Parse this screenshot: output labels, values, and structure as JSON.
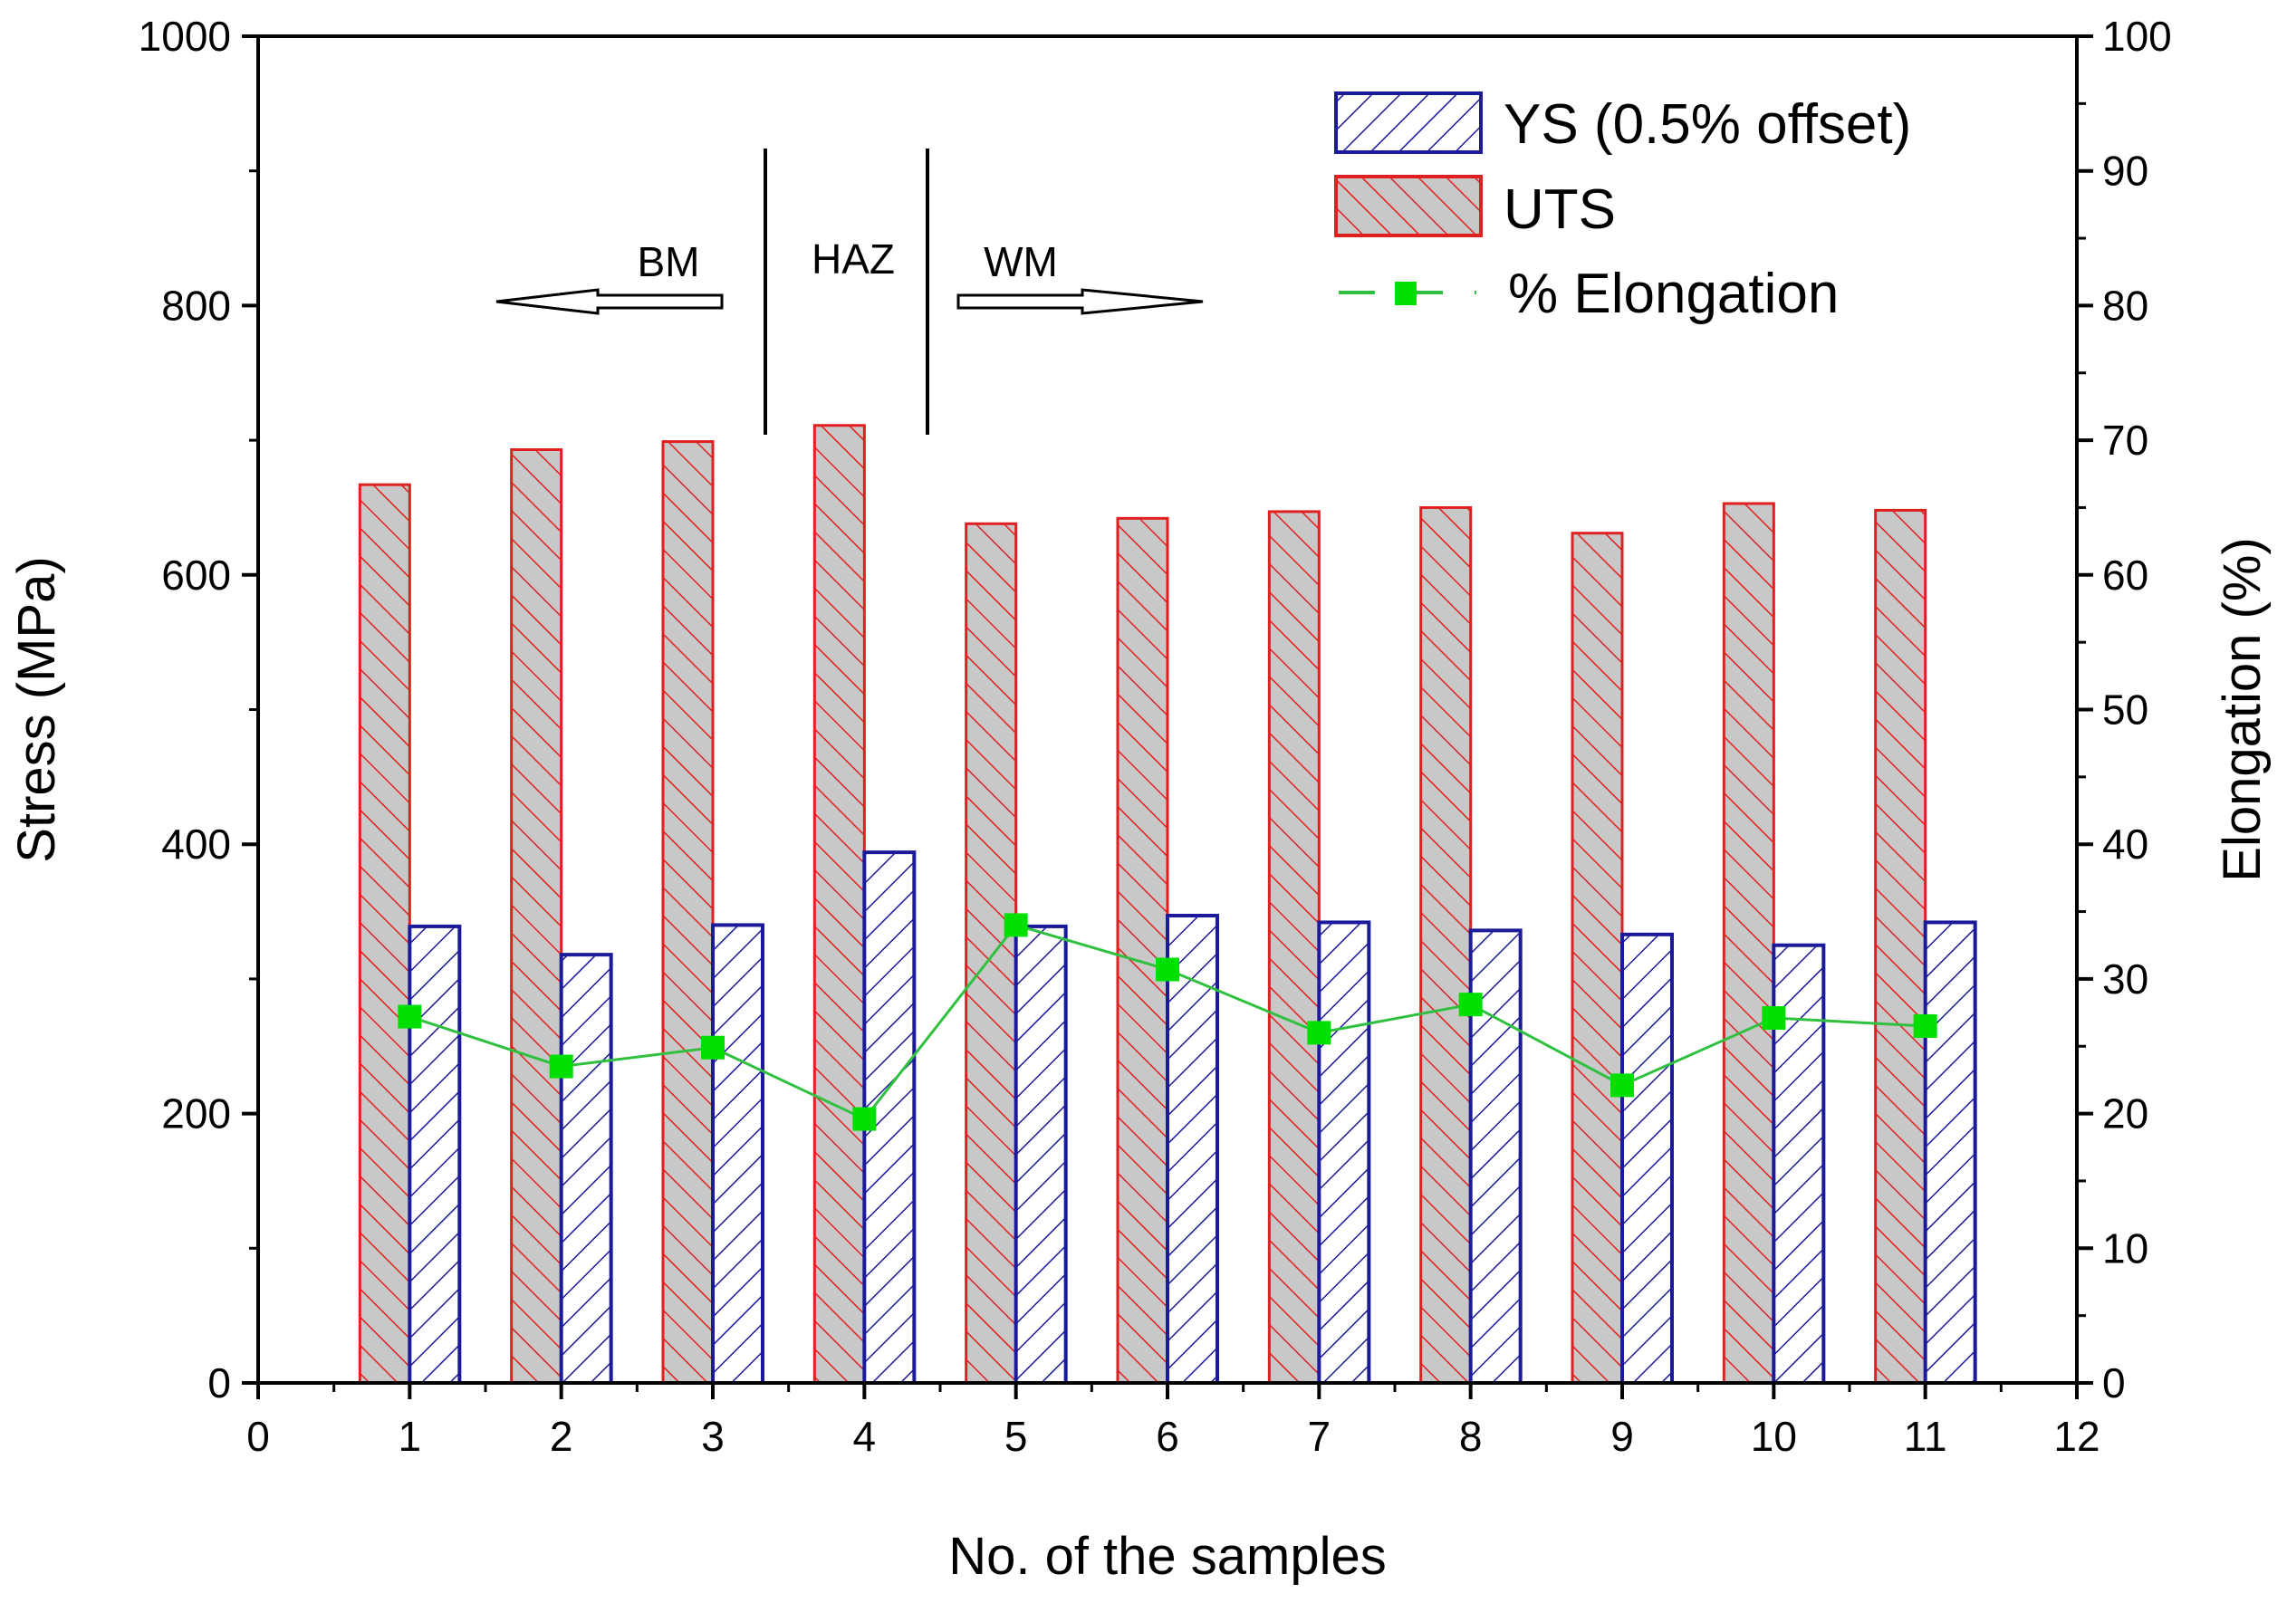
{
  "chart_data": {
    "type": "bar",
    "xlabel": "No. of the samples",
    "ylabel": "Stress (MPa)",
    "y2label": "Elongation (%)",
    "xlim": [
      0,
      12
    ],
    "ylim": [
      0,
      1000
    ],
    "y2lim": [
      0,
      100
    ],
    "xticks": [
      "0",
      "1",
      "2",
      "3",
      "4",
      "5",
      "6",
      "7",
      "8",
      "9",
      "10",
      "11",
      "12"
    ],
    "yticks": [
      "0",
      "200",
      "400",
      "600",
      "800",
      "1000"
    ],
    "y2ticks": [
      "0",
      "10",
      "20",
      "30",
      "40",
      "50",
      "60",
      "70",
      "80",
      "90",
      "100"
    ],
    "x": [
      1,
      2,
      3,
      4,
      5,
      6,
      7,
      8,
      9,
      10,
      11
    ],
    "series": [
      {
        "name": "YS (0.5% offset)",
        "type": "bar",
        "axis": "left",
        "color": "#1a1a9a",
        "values": [
          339,
          318,
          340,
          394,
          339,
          347,
          342,
          336,
          333,
          325,
          342
        ]
      },
      {
        "name": "UTS",
        "type": "bar",
        "axis": "left",
        "color": "#e02020",
        "fill": "#c8c8c8",
        "values": [
          667,
          693,
          699,
          711,
          638,
          642,
          647,
          650,
          631,
          653,
          648
        ]
      },
      {
        "name": "% Elongation",
        "type": "line",
        "axis": "right",
        "color": "#00e000",
        "values": [
          27.2,
          23.5,
          24.9,
          19.6,
          34.0,
          30.7,
          26.0,
          28.1,
          22.1,
          27.1,
          26.5
        ]
      }
    ],
    "annotations": {
      "bm": "BM",
      "haz": "HAZ",
      "wm": "WM"
    },
    "legend_position": "top-right",
    "grid": false
  }
}
